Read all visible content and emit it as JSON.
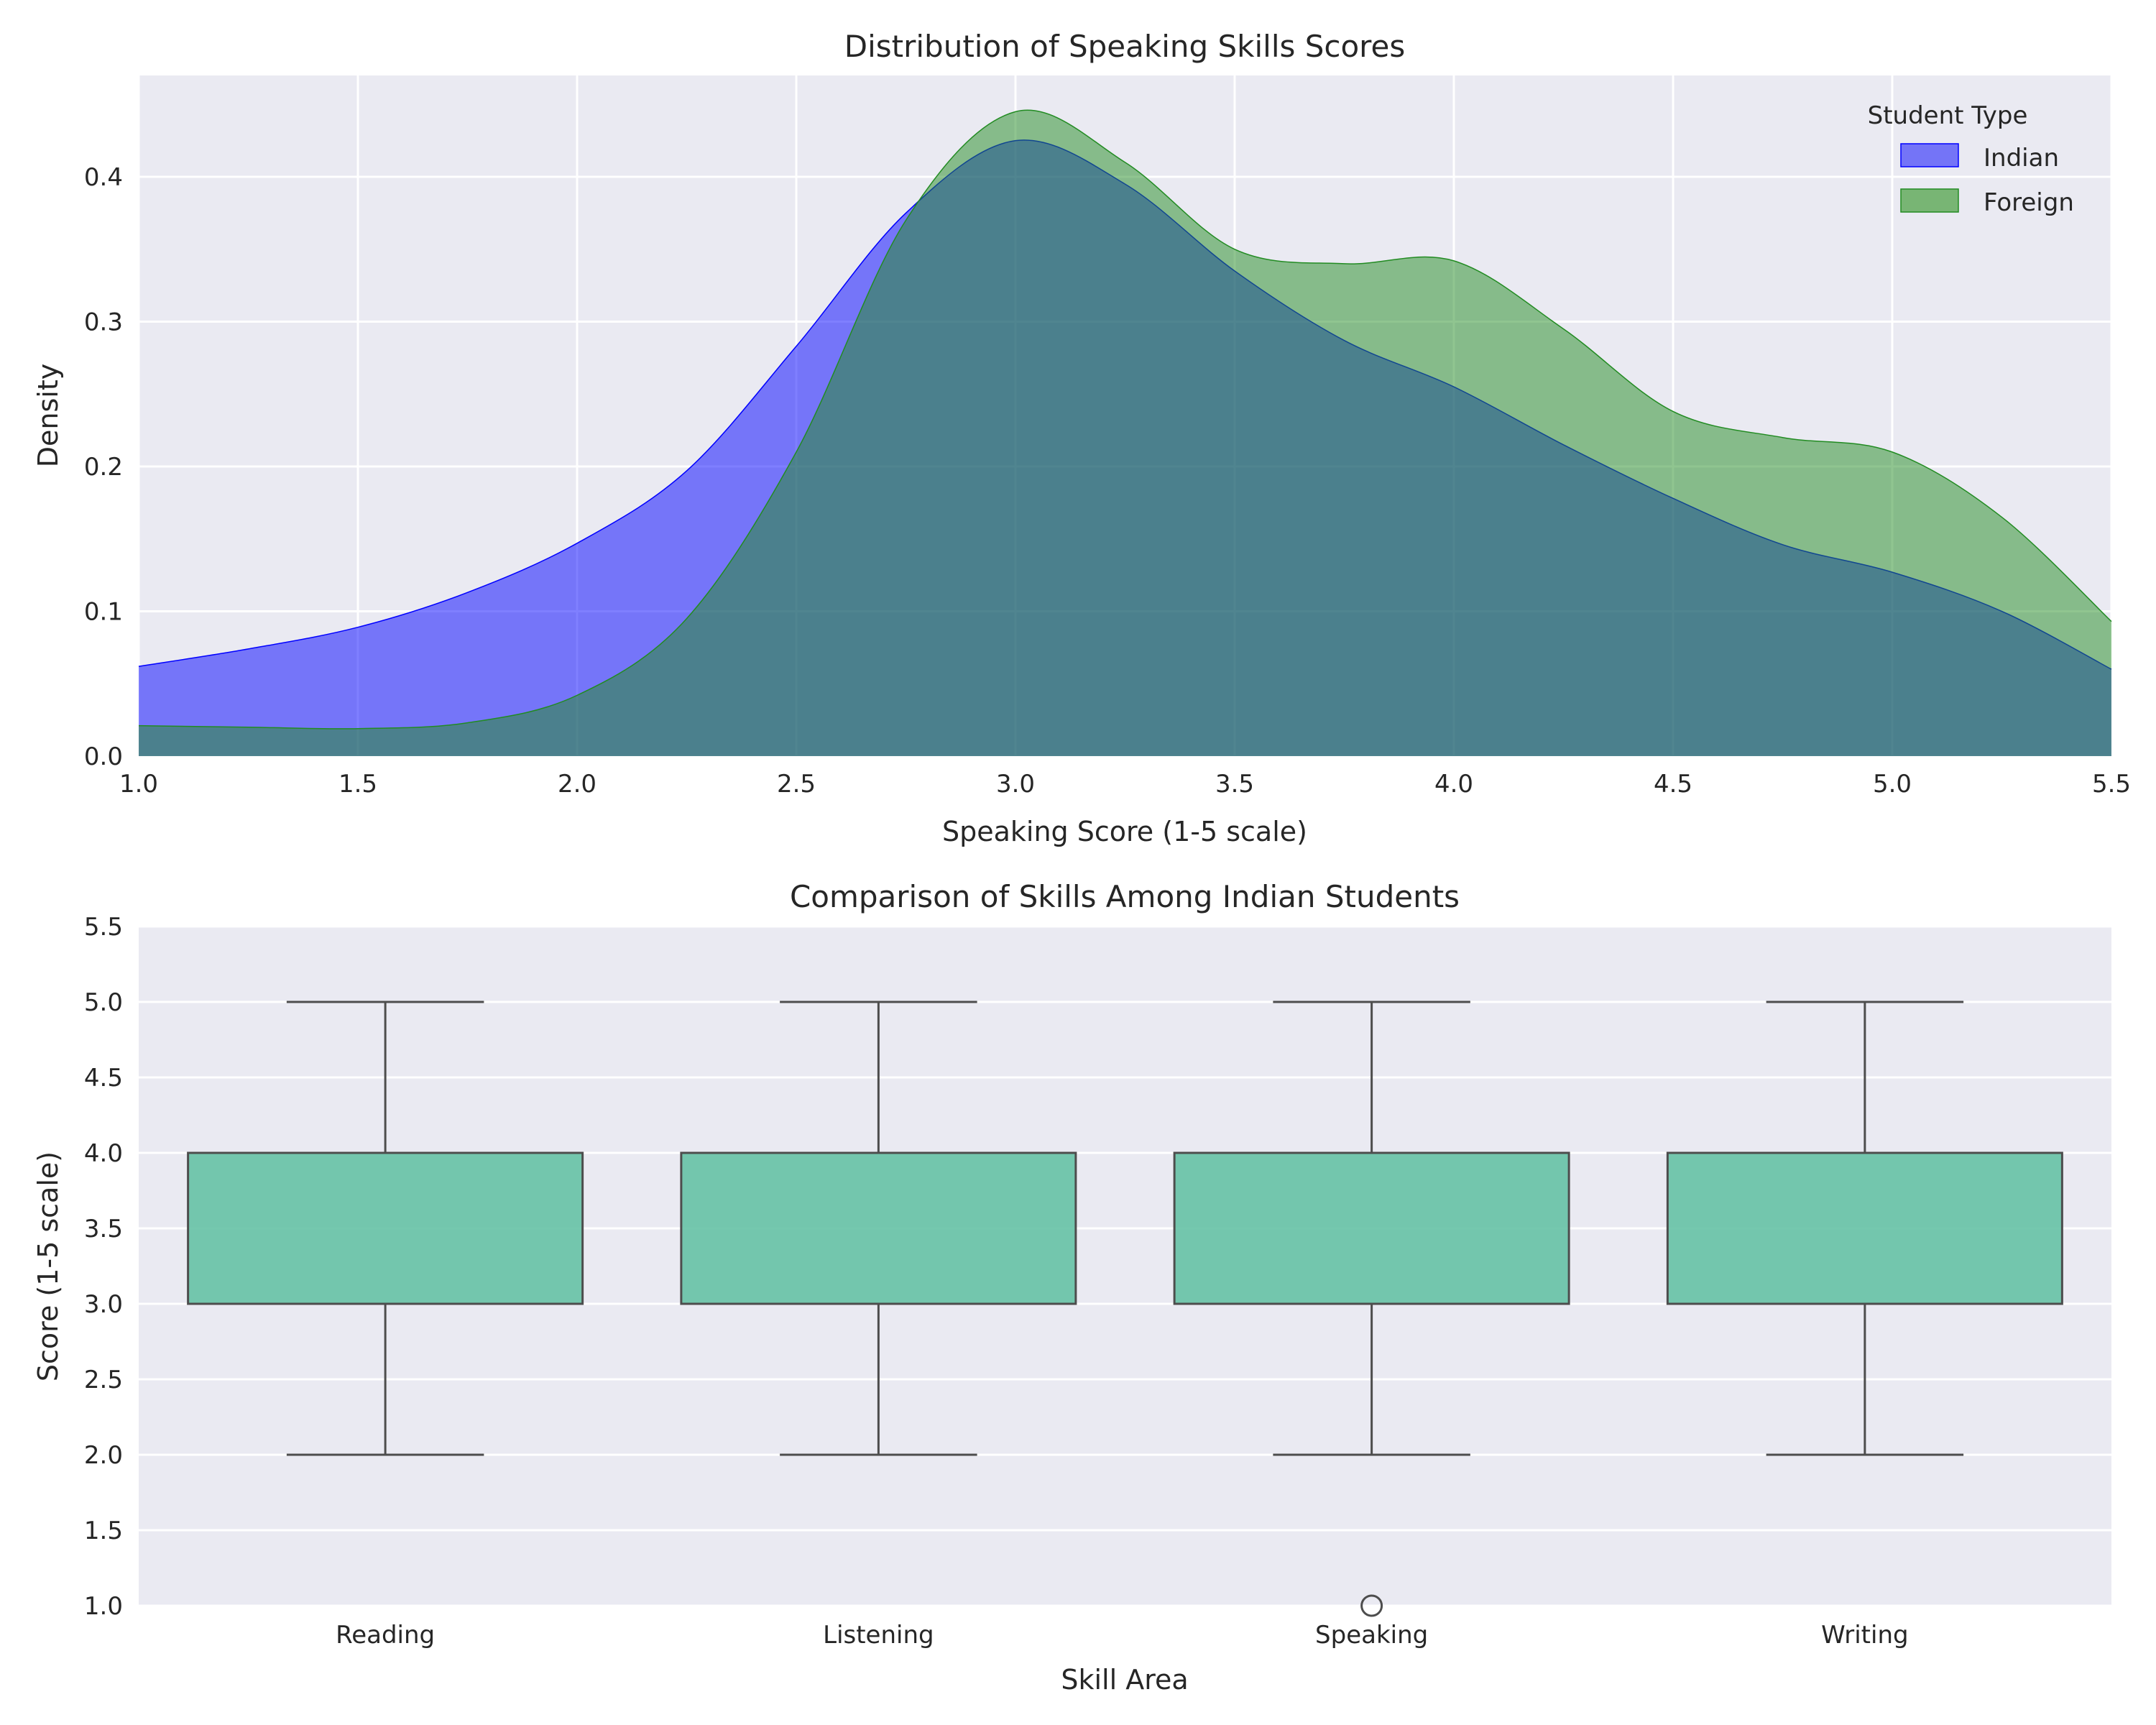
{
  "chart_data": [
    {
      "type": "area",
      "title": "Distribution of Speaking Skills Scores",
      "xlabel": "Speaking Score (1-5 scale)",
      "ylabel": "Density",
      "xlim": [
        1.0,
        5.5
      ],
      "ylim": [
        0.0,
        0.47
      ],
      "xticks": [
        "1.0",
        "1.5",
        "2.0",
        "2.5",
        "3.0",
        "3.5",
        "4.0",
        "4.5",
        "5.0",
        "5.5"
      ],
      "yticks": [
        "0.0",
        "0.1",
        "0.2",
        "0.3",
        "0.4"
      ],
      "grid": true,
      "legend": {
        "title": "Student Type",
        "placement": "top-right"
      },
      "series": [
        {
          "name": "Indian",
          "color": "#0000ff",
          "x": [
            1.0,
            1.25,
            1.5,
            1.75,
            2.0,
            2.25,
            2.5,
            2.75,
            3.0,
            3.25,
            3.5,
            3.75,
            4.0,
            4.25,
            4.5,
            4.75,
            5.0,
            5.25,
            5.5
          ],
          "values": [
            0.062,
            0.074,
            0.089,
            0.113,
            0.147,
            0.197,
            0.283,
            0.375,
            0.425,
            0.395,
            0.335,
            0.287,
            0.255,
            0.215,
            0.178,
            0.146,
            0.127,
            0.1,
            0.06
          ]
        },
        {
          "name": "Foreign",
          "color": "#228b22",
          "x": [
            1.0,
            1.25,
            1.5,
            1.75,
            2.0,
            2.25,
            2.5,
            2.75,
            3.0,
            3.25,
            3.5,
            3.75,
            4.0,
            4.25,
            4.5,
            4.75,
            5.0,
            5.25,
            5.5
          ],
          "values": [
            0.021,
            0.02,
            0.019,
            0.023,
            0.042,
            0.095,
            0.21,
            0.37,
            0.445,
            0.41,
            0.35,
            0.34,
            0.342,
            0.295,
            0.238,
            0.22,
            0.21,
            0.165,
            0.093
          ]
        }
      ]
    },
    {
      "type": "box",
      "title": "Comparison of Skills Among Indian Students",
      "xlabel": "Skill Area",
      "ylabel": "Score (1-5 scale)",
      "ylim": [
        1.0,
        5.5
      ],
      "yticks": [
        "1.0",
        "1.5",
        "2.0",
        "2.5",
        "3.0",
        "3.5",
        "4.0",
        "4.5",
        "5.0",
        "5.5"
      ],
      "grid": true,
      "color": "#66c2a5",
      "categories": [
        "Reading",
        "Listening",
        "Speaking",
        "Writing"
      ],
      "boxes": [
        {
          "min": 2.0,
          "q1": 3.0,
          "median": 3.0,
          "q3": 4.0,
          "max": 5.0,
          "outliers": []
        },
        {
          "min": 2.0,
          "q1": 3.0,
          "median": 3.0,
          "q3": 4.0,
          "max": 5.0,
          "outliers": []
        },
        {
          "min": 2.0,
          "q1": 3.0,
          "median": 3.0,
          "q3": 4.0,
          "max": 5.0,
          "outliers": [
            1.0
          ]
        },
        {
          "min": 2.0,
          "q1": 3.0,
          "median": 3.0,
          "q3": 4.0,
          "max": 5.0,
          "outliers": []
        }
      ]
    }
  ]
}
